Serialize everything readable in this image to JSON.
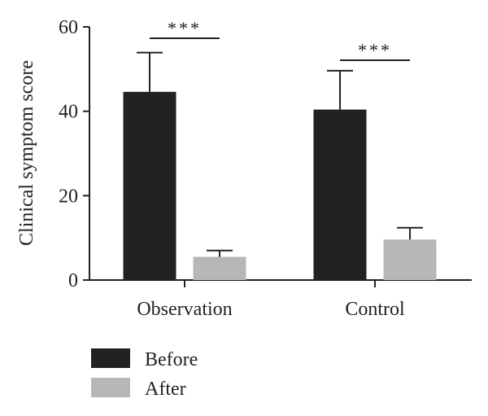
{
  "chart_data": {
    "type": "bar",
    "title": "",
    "xlabel": "",
    "ylabel": "Clinical symptom score",
    "ylim": [
      0,
      60
    ],
    "yticks": [
      0,
      20,
      40,
      60
    ],
    "categories": [
      "Observation",
      "Control"
    ],
    "series": [
      {
        "name": "Before",
        "color": "#222222",
        "values": [
          44.6,
          40.4
        ],
        "errors": [
          9.3,
          9.2
        ]
      },
      {
        "name": "After",
        "color": "#b7b7b7",
        "values": [
          5.5,
          9.6
        ],
        "errors": [
          1.5,
          2.8
        ]
      }
    ],
    "significance": [
      {
        "category": "Observation",
        "label": "***"
      },
      {
        "category": "Control",
        "label": "***"
      }
    ],
    "legend": {
      "position": "bottom-left"
    },
    "grid": false
  }
}
